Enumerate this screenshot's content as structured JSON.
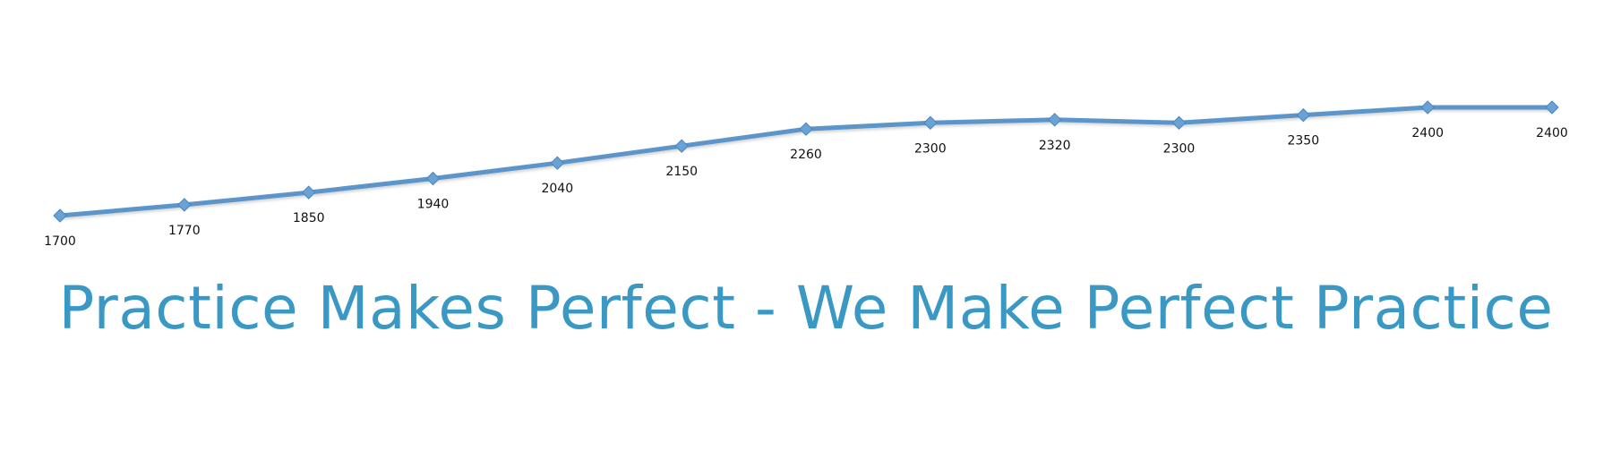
{
  "chart_data": {
    "type": "line",
    "values": [
      1700,
      1770,
      1850,
      1940,
      2040,
      2150,
      2260,
      2300,
      2320,
      2300,
      2350,
      2400,
      2400
    ],
    "labels": [
      "1700",
      "1770",
      "1850",
      "1940",
      "2040",
      "2150",
      "2260",
      "2300",
      "2320",
      "2300",
      "2350",
      "2400",
      "2400"
    ],
    "marker": "diamond",
    "grid": false,
    "legend": "none",
    "line_color": "#5b95c9",
    "marker_color": "#6aa2d6"
  },
  "tagline": "Practice Makes Perfect - We Make Perfect Practice",
  "colors": {
    "tagline": "#3a98c4",
    "background": "#ffffff"
  }
}
